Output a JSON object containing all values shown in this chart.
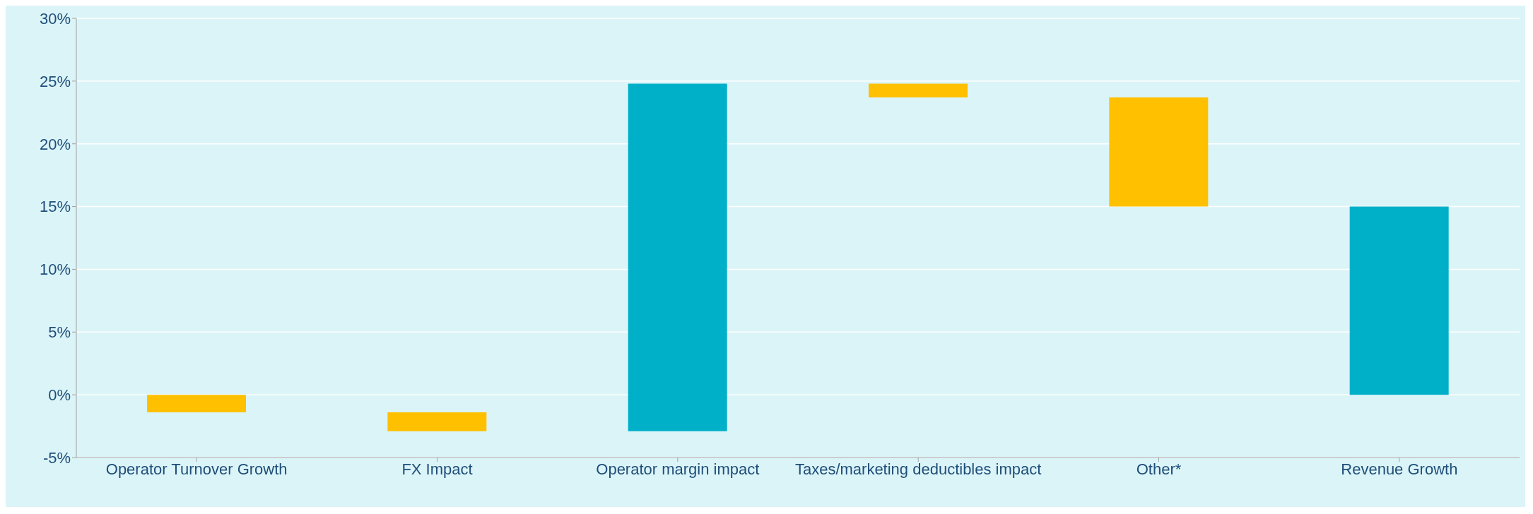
{
  "chart_data": {
    "type": "bar",
    "categories": [
      "Operator Turnover Growth",
      "FX Impact",
      "Operator margin impact",
      "Taxes/marketing deductibles impact",
      "Other*",
      "Revenue Growth"
    ],
    "values": [
      -1.4,
      -1.5,
      27.7,
      -1.1,
      -8.7,
      15.0
    ],
    "base": [
      0,
      -1.4,
      -2.9,
      24.8,
      23.7,
      0
    ],
    "colors": [
      "#ffc000",
      "#ffc000",
      "#00afc8",
      "#ffc000",
      "#ffc000",
      "#00afc8"
    ],
    "ylim": [
      -5,
      30
    ],
    "yticks": [
      {
        "value": -5,
        "label": "-5%"
      },
      {
        "value": 0,
        "label": "0%"
      },
      {
        "value": 5,
        "label": "5%"
      },
      {
        "value": 10,
        "label": "10%"
      },
      {
        "value": 15,
        "label": "15%"
      },
      {
        "value": 20,
        "label": "20%"
      },
      {
        "value": 25,
        "label": "25%"
      },
      {
        "value": 30,
        "label": "30%"
      }
    ],
    "grid": "y",
    "legend": false
  }
}
